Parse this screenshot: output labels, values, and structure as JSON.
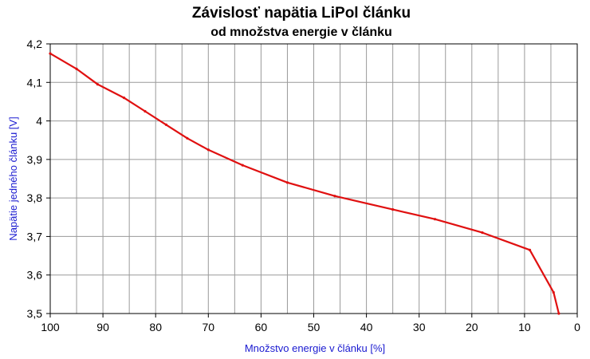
{
  "chart_data": {
    "type": "line",
    "title": "Závislosť napätia LiPol článku",
    "subtitle": "od množstva energie v článku",
    "xlabel": "Množstvo energie v článku [%]",
    "ylabel": "Napätie jedného článku [V]",
    "xlim": [
      100,
      0
    ],
    "ylim": [
      3.5,
      4.2
    ],
    "x_ticks": [
      "100",
      "90",
      "80",
      "70",
      "60",
      "50",
      "40",
      "30",
      "20",
      "10",
      "0"
    ],
    "y_ticks": [
      "3,5",
      "3,6",
      "3,7",
      "3,8",
      "3,9",
      "4",
      "4,1",
      "4,2"
    ],
    "grid": true,
    "series": [
      {
        "color": "#e01010",
        "x": [
          100,
          95,
          91,
          86,
          82,
          78,
          74,
          70,
          63.5,
          55,
          46,
          35,
          27,
          18,
          9,
          4.5,
          3.5
        ],
        "y": [
          4.175,
          4.135,
          4.095,
          4.06,
          4.025,
          3.99,
          3.955,
          3.925,
          3.885,
          3.84,
          3.805,
          3.77,
          3.745,
          3.71,
          3.665,
          3.555,
          3.5
        ]
      }
    ]
  }
}
